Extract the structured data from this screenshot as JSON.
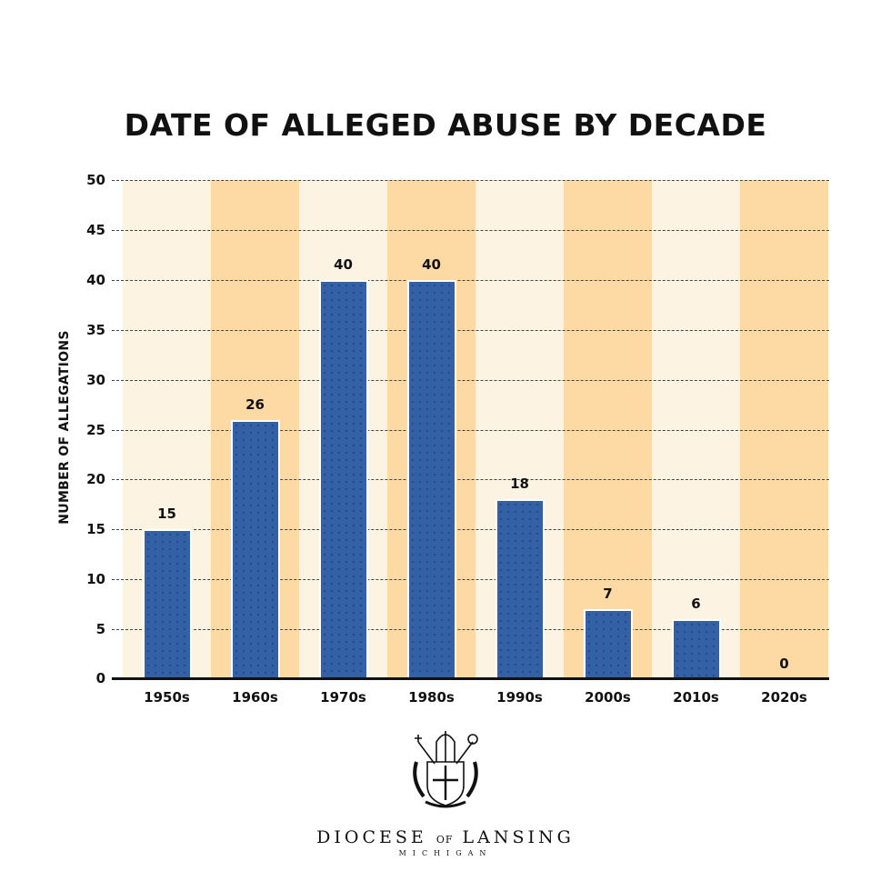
{
  "title": "DATE OF ALLEGED ABUSE BY DECADE",
  "y_axis_label": "NUMBER OF ALLEGATIONS",
  "y_ticks": [
    "0",
    "5",
    "10",
    "15",
    "20",
    "25",
    "30",
    "35",
    "40",
    "45",
    "50"
  ],
  "categories": [
    "1950s",
    "1960s",
    "1970s",
    "1980s",
    "1990s",
    "2000s",
    "2010s",
    "2020s"
  ],
  "value_labels": [
    "15",
    "26",
    "40",
    "40",
    "18",
    "7",
    "6",
    "0"
  ],
  "colors": {
    "bar": "#3460a6",
    "band_light": "#fdf3e3",
    "band_dark": "#fdd9a4",
    "text": "#111111"
  },
  "footer": {
    "org_name_part1": "DIOCESE",
    "org_name_of": "OF",
    "org_name_part2": "LANSING",
    "org_sub": "MICHIGAN",
    "logo_icon": "diocese-coat-of-arms"
  },
  "chart_data": {
    "type": "bar",
    "title": "DATE OF ALLEGED ABUSE BY DECADE",
    "xlabel": "",
    "ylabel": "NUMBER OF ALLEGATIONS",
    "categories": [
      "1950s",
      "1960s",
      "1970s",
      "1980s",
      "1990s",
      "2000s",
      "2010s",
      "2020s"
    ],
    "values": [
      15,
      26,
      40,
      40,
      18,
      7,
      6,
      0
    ],
    "ylim": [
      0,
      50
    ],
    "yticks": [
      0,
      5,
      10,
      15,
      20,
      25,
      30,
      35,
      40,
      45,
      50
    ],
    "grid": true,
    "legend": null,
    "data_labels": true
  }
}
